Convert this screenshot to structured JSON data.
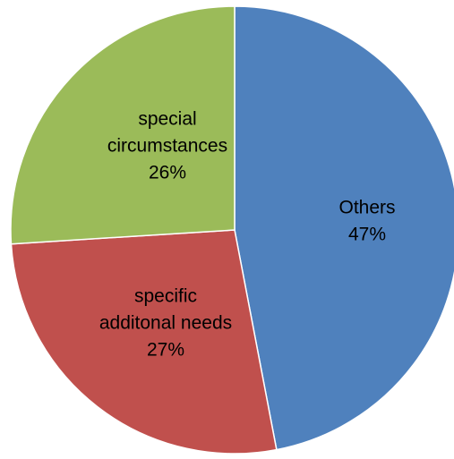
{
  "chart_data": {
    "type": "pie",
    "title": "",
    "slices": [
      {
        "label": "Others",
        "label_lines": [
          "Others"
        ],
        "value": 47,
        "value_label": "47%",
        "color": "#4F81BD"
      },
      {
        "label": "specific additonal needs",
        "label_lines": [
          "specific",
          "additonal needs"
        ],
        "value": 27,
        "value_label": "27%",
        "color": "#C0504D"
      },
      {
        "label": "special circumstances",
        "label_lines": [
          "special",
          "circumstances"
        ],
        "value": 26,
        "value_label": "26%",
        "color": "#9BBB59"
      }
    ],
    "start_angle_deg": 0,
    "direction": "clockwise",
    "legend": "none",
    "slice_border_color": "#FFFFFF"
  }
}
